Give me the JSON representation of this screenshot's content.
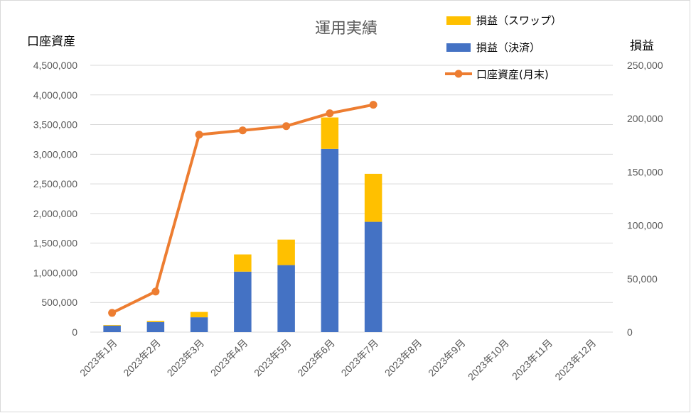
{
  "chart_data": {
    "type": "bar",
    "subtype": "stacked-bar-with-line-dual-axis",
    "title": "運用実績",
    "categories": [
      "2023年1月",
      "2023年2月",
      "2023年3月",
      "2023年4月",
      "2023年5月",
      "2023年6月",
      "2023年7月",
      "2023年8月",
      "2023年9月",
      "2023年10月",
      "2023年11月",
      "2023年12月"
    ],
    "y_left": {
      "label": "口座資産",
      "range": [
        0,
        4500000
      ],
      "ticks": [
        "0",
        "500,000",
        "1,000,000",
        "1,500,000",
        "2,000,000",
        "2,500,000",
        "3,000,000",
        "3,500,000",
        "4,000,000",
        "4,500,000"
      ]
    },
    "y_right": {
      "label": "損益",
      "range": [
        0,
        250000
      ],
      "ticks": [
        "0",
        "50,000",
        "100,000",
        "150,000",
        "200,000",
        "250,000"
      ]
    },
    "series": [
      {
        "name": "損益（決済）",
        "kind": "bar",
        "axis": "left",
        "color": "#4472C4",
        "values": [
          110000,
          170000,
          250000,
          1020000,
          1130000,
          3090000,
          1860000,
          null,
          null,
          null,
          null,
          null
        ]
      },
      {
        "name": "損益（スワップ）",
        "kind": "bar",
        "axis": "left",
        "color": "#FFC000",
        "values": [
          10000,
          20000,
          90000,
          290000,
          430000,
          530000,
          810000,
          null,
          null,
          null,
          null,
          null
        ]
      },
      {
        "name": "口座資産(月末)",
        "kind": "line",
        "axis": "right",
        "color": "#ED7D31",
        "values": [
          18000,
          38000,
          185000,
          189000,
          193000,
          205000,
          213000,
          null,
          null,
          null,
          null,
          null
        ]
      }
    ],
    "legend_position": "top-right",
    "gridlines": true
  }
}
